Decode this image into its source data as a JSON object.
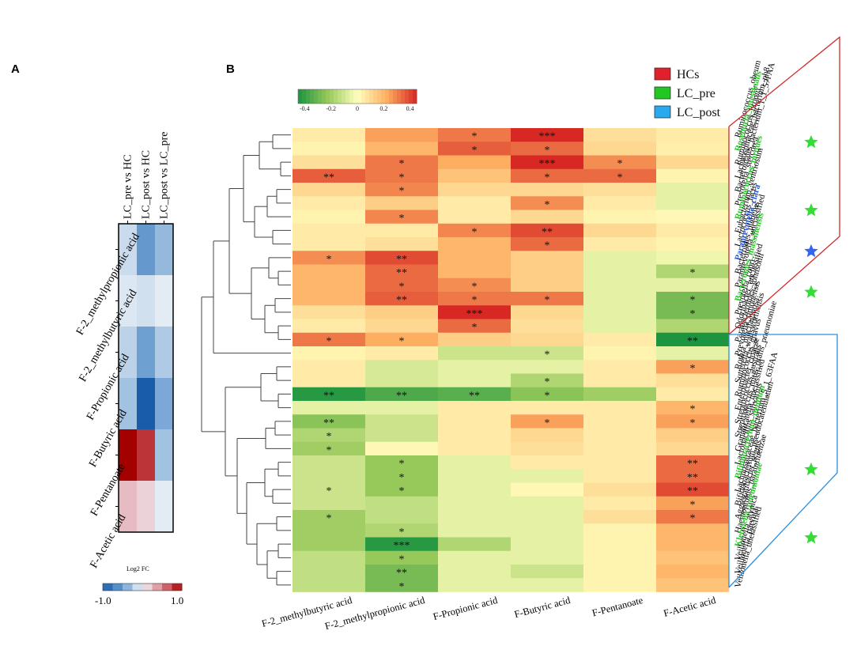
{
  "panel_a": {
    "label": "A",
    "legend_title": "Log2 FC",
    "legend_min": "-1.0",
    "legend_max": "1.0"
  },
  "panel_b": {
    "label": "B",
    "colorbar_ticks": [
      "-0.4",
      "-0.2",
      "0",
      "0.2",
      "0.4"
    ]
  },
  "group_legend": [
    {
      "label": "HCs",
      "color": "#e0202a"
    },
    {
      "label": "LC_pre",
      "color": "#22c822"
    },
    {
      "label": "LC_post",
      "color": "#29a9ee"
    }
  ],
  "chart_data": [
    {
      "type": "heatmap",
      "title": "",
      "columns": [
        "LC_pre vs HC",
        "LC_post vs HC",
        "LC_post vs LC_pre"
      ],
      "rows": [
        "F-2_methylpropionic acid",
        "F-2_methylbutyric acid",
        "F-Propionic acid",
        "F-Butyric acid",
        "F-Pentanoate",
        "F-Acetic acid"
      ],
      "values": [
        [
          -0.15,
          -0.55,
          -0.35
        ],
        [
          -0.08,
          -0.12,
          -0.05
        ],
        [
          -0.2,
          -0.5,
          -0.25
        ],
        [
          -0.3,
          -1.0,
          -0.45
        ],
        [
          1.0,
          0.8,
          -0.3
        ],
        [
          0.25,
          0.15,
          -0.05
        ]
      ],
      "scale_label": "Log2 FC",
      "range": [
        -1.0,
        1.0
      ]
    },
    {
      "type": "heatmap",
      "title": "",
      "range": [
        -0.4,
        0.4
      ],
      "columns": [
        "F-2_methylbutyric acid",
        "F-2_methylpropionic acid",
        "F-Propionic acid",
        "F-Butyric acid",
        "F-Pentanoate",
        "F-Acetic acid"
      ],
      "rows": [
        {
          "name": "Ruminococcus_obeum",
          "color": "#000000",
          "star": false
        },
        {
          "name": "Roseburia_intestinalis",
          "color": "#22c822",
          "star": true
        },
        {
          "name": "Ruminococcus_bromii",
          "color": "#000000",
          "star": false
        },
        {
          "name": "Lachnospiraceae_bacterium_ph8",
          "color": "#000000",
          "star": false
        },
        {
          "name": "Bacteroidales_bacterium_1_1_57FAA",
          "color": "#000000",
          "star": false
        },
        {
          "name": "Prevotella_stercorea",
          "color": "#000000",
          "star": false
        },
        {
          "name": "Ruminococcus_torques",
          "color": "#22c822",
          "star": true
        },
        {
          "name": "Eubacterium_ventriosum",
          "color": "#000000",
          "star": false
        },
        {
          "name": "Lactococcus_lactis",
          "color": "#000000",
          "star": false
        },
        {
          "name": "Paraprevotella_clara",
          "color": "#2255dd",
          "star": true
        },
        {
          "name": "Bacteroides_plebeius",
          "color": "#000000",
          "star": false
        },
        {
          "name": "Paraprevotella_unclassified",
          "color": "#000000",
          "star": false
        },
        {
          "name": "Bacteroides_massiliensis",
          "color": "#22c822",
          "star": true
        },
        {
          "name": "Prevotella_copri",
          "color": "#000000",
          "star": false
        },
        {
          "name": "Odoribacter_unclassified",
          "color": "#000000",
          "star": false
        },
        {
          "name": "Parabacteroides_johnsonii",
          "color": "#000000",
          "star": false
        },
        {
          "name": "Prevotella_timonensis",
          "color": "#000000",
          "star": false
        },
        {
          "name": "Rothia_mucilaginosa",
          "color": "#000000",
          "star": false
        },
        {
          "name": "Sutterella_wadsworthensis",
          "color": "#000000",
          "star": false
        },
        {
          "name": "Ruminococcus_gnavus",
          "color": "#000000",
          "star": false
        },
        {
          "name": "Enterobacter_cloacae",
          "color": "#000000",
          "star": false
        },
        {
          "name": "Streptococcus_australis",
          "color": "#000000",
          "star": false
        },
        {
          "name": "Streptococcus_mitis_oralis_pneumoniae",
          "color": "#000000",
          "star": false
        },
        {
          "name": "Granulicatella_unclassified",
          "color": "#000000",
          "star": false
        },
        {
          "name": "Lactobacillus_salivarius",
          "color": "#000000",
          "star": false
        },
        {
          "name": "Bifidobacterium_dentium",
          "color": "#22c822",
          "star": true
        },
        {
          "name": "Lachnospiraceae_bacterium_5_1_63FAA",
          "color": "#000000",
          "star": false
        },
        {
          "name": "Bifidobacterium_pseudocatenulatum",
          "color": "#000000",
          "star": false
        },
        {
          "name": "Aggregatibacter_segnis",
          "color": "#000000",
          "star": false
        },
        {
          "name": "Haemophilus_parainfluenzae",
          "color": "#000000",
          "star": false
        },
        {
          "name": "Klebsiella_pneumoniae",
          "color": "#22c822",
          "star": true
        },
        {
          "name": "Veillonella_atypica",
          "color": "#000000",
          "star": false
        },
        {
          "name": "Veillonella_parvula",
          "color": "#000000",
          "star": false
        },
        {
          "name": "Veillonella_unclassified",
          "color": "#000000",
          "star": false
        }
      ],
      "values": [
        [
          0.05,
          0.22,
          0.28,
          0.4,
          0.08,
          0.05
        ],
        [
          0.03,
          0.18,
          0.32,
          0.3,
          0.1,
          0.04
        ],
        [
          0.08,
          0.28,
          0.2,
          0.42,
          0.25,
          0.1
        ],
        [
          0.32,
          0.28,
          0.15,
          0.3,
          0.3,
          0.03
        ],
        [
          0.1,
          0.26,
          0.1,
          0.1,
          0.08,
          -0.05
        ],
        [
          0.05,
          0.12,
          0.05,
          0.25,
          0.05,
          -0.05
        ],
        [
          0.03,
          0.26,
          0.05,
          0.1,
          0.03,
          0.02
        ],
        [
          0.05,
          0.05,
          0.26,
          0.35,
          0.1,
          0.05
        ],
        [
          0.05,
          0.08,
          0.18,
          0.3,
          0.05,
          0.03
        ],
        [
          0.25,
          0.35,
          0.18,
          0.12,
          -0.05,
          -0.03
        ],
        [
          0.18,
          0.3,
          0.18,
          0.12,
          -0.05,
          -0.15
        ],
        [
          0.18,
          0.3,
          0.25,
          0.12,
          -0.05,
          -0.05
        ],
        [
          0.18,
          0.32,
          0.28,
          0.28,
          -0.05,
          -0.25
        ],
        [
          0.08,
          0.12,
          0.45,
          0.1,
          -0.05,
          -0.25
        ],
        [
          0.05,
          0.1,
          0.3,
          0.08,
          -0.05,
          -0.15
        ],
        [
          0.28,
          0.2,
          0.12,
          0.1,
          0.05,
          -0.45
        ],
        [
          0.03,
          0.05,
          -0.1,
          -0.1,
          0.03,
          -0.05
        ],
        [
          0.05,
          -0.08,
          -0.05,
          -0.05,
          0.05,
          0.22
        ],
        [
          0.05,
          -0.08,
          -0.05,
          -0.15,
          0.05,
          0.08
        ],
        [
          -0.38,
          -0.32,
          -0.3,
          -0.22,
          -0.18,
          0.05
        ],
        [
          -0.05,
          -0.05,
          0.05,
          0.05,
          0.05,
          0.18
        ],
        [
          -0.22,
          -0.1,
          0.05,
          0.22,
          0.05,
          0.22
        ],
        [
          -0.15,
          -0.1,
          0.05,
          0.1,
          0.05,
          0.12
        ],
        [
          -0.18,
          0.02,
          0.05,
          0.08,
          0.05,
          0.1
        ],
        [
          -0.1,
          -0.2,
          -0.05,
          0.05,
          0.05,
          0.3
        ],
        [
          -0.1,
          -0.2,
          -0.05,
          -0.05,
          0.05,
          0.3
        ],
        [
          -0.1,
          -0.2,
          -0.05,
          0.02,
          0.08,
          0.35
        ],
        [
          -0.1,
          -0.12,
          -0.05,
          -0.05,
          0.05,
          0.22
        ],
        [
          -0.18,
          -0.12,
          -0.05,
          -0.05,
          0.08,
          0.28
        ],
        [
          -0.18,
          -0.15,
          -0.05,
          -0.05,
          0.03,
          0.18
        ],
        [
          -0.18,
          -0.38,
          -0.15,
          -0.05,
          0.03,
          0.18
        ],
        [
          -0.12,
          -0.2,
          -0.05,
          -0.05,
          0.03,
          0.15
        ],
        [
          -0.12,
          -0.25,
          -0.05,
          -0.1,
          0.03,
          0.18
        ],
        [
          -0.12,
          -0.25,
          -0.05,
          -0.05,
          0.03,
          0.15
        ]
      ],
      "significance": [
        [
          "",
          "",
          "*",
          "***",
          "",
          ""
        ],
        [
          "",
          "",
          "*",
          "*",
          "",
          ""
        ],
        [
          "",
          "*",
          "",
          "***",
          "*",
          ""
        ],
        [
          "**",
          "*",
          "",
          "*",
          "*",
          ""
        ],
        [
          "",
          "*",
          "",
          "",
          "",
          ""
        ],
        [
          "",
          "",
          "",
          "*",
          "",
          ""
        ],
        [
          "",
          "*",
          "",
          "",
          "",
          ""
        ],
        [
          "",
          "",
          "*",
          "**",
          "",
          ""
        ],
        [
          "",
          "",
          "",
          "*",
          "",
          ""
        ],
        [
          "*",
          "**",
          "",
          "",
          "",
          ""
        ],
        [
          "",
          "**",
          "",
          "",
          "",
          "*"
        ],
        [
          "",
          "*",
          "*",
          "",
          "",
          ""
        ],
        [
          "",
          "**",
          "*",
          "*",
          "",
          "*"
        ],
        [
          "",
          "",
          "***",
          "",
          "",
          "*"
        ],
        [
          "",
          "",
          "*",
          "",
          "",
          ""
        ],
        [
          "*",
          "*",
          "",
          "",
          "",
          "**"
        ],
        [
          "",
          "",
          "",
          "*",
          "",
          ""
        ],
        [
          "",
          "",
          "",
          "",
          "",
          "*"
        ],
        [
          "",
          "",
          "",
          "*",
          "",
          ""
        ],
        [
          "**",
          "**",
          "**",
          "*",
          "",
          ""
        ],
        [
          "",
          "",
          "",
          "",
          "",
          "*"
        ],
        [
          "**",
          "",
          "",
          "*",
          "",
          "*"
        ],
        [
          "*",
          "",
          "",
          "",
          "",
          ""
        ],
        [
          "*",
          "",
          "",
          "",
          "",
          ""
        ],
        [
          "",
          "*",
          "",
          "",
          "",
          "**"
        ],
        [
          "",
          "*",
          "",
          "",
          "",
          "**"
        ],
        [
          "*",
          "*",
          "",
          "",
          "",
          "**"
        ],
        [
          "",
          "",
          "",
          "",
          "",
          "*"
        ],
        [
          "*",
          "",
          "",
          "",
          "",
          "*"
        ],
        [
          "",
          "*",
          "",
          "",
          "",
          ""
        ],
        [
          "",
          "***",
          "",
          "",
          "",
          ""
        ],
        [
          "",
          "*",
          "",
          "",
          "",
          ""
        ],
        [
          "",
          "**",
          "",
          "",
          "",
          ""
        ],
        [
          "",
          "*",
          "",
          "",
          "",
          ""
        ]
      ],
      "group_brackets": [
        {
          "label": "HCs",
          "color": "#e0202a",
          "from": "Ruminococcus_obeum",
          "to": "Rothia_mucilaginosa"
        },
        {
          "label": "LC_post",
          "color": "#29a9ee",
          "from": "Sutterella_wadsworthensis",
          "to": "Veillonella_unclassified"
        }
      ]
    }
  ]
}
